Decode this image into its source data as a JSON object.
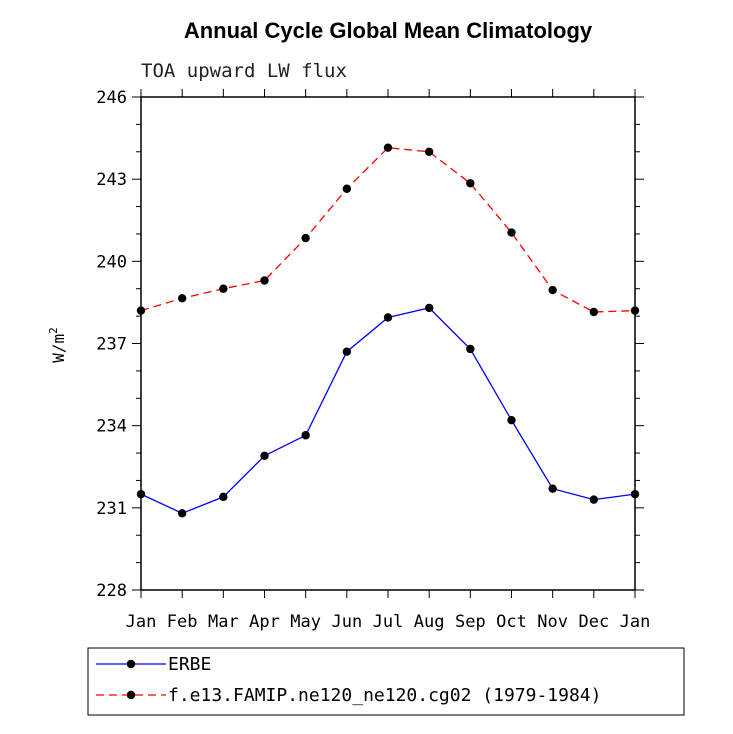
{
  "chart_data": {
    "type": "line",
    "title": "Annual Cycle Global Mean Climatology",
    "subtitle": "TOA upward LW flux",
    "xlabel": "",
    "ylabel_base": "W/m",
    "ylabel_sup": "2",
    "categories": [
      "Jan",
      "Feb",
      "Mar",
      "Apr",
      "May",
      "Jun",
      "Jul",
      "Aug",
      "Sep",
      "Oct",
      "Nov",
      "Dec",
      "Jan"
    ],
    "ylim": [
      228,
      246
    ],
    "yticks": [
      228,
      231,
      234,
      237,
      240,
      243,
      246
    ],
    "series": [
      {
        "name": "ERBE",
        "color": "#0000ff",
        "dash": "solid",
        "values": [
          231.5,
          230.8,
          231.4,
          232.9,
          233.65,
          236.7,
          237.95,
          238.3,
          236.8,
          234.2,
          231.7,
          231.3,
          231.5
        ]
      },
      {
        "name": "f.e13.FAMIP.ne120_ne120.cg02 (1979-1984)",
        "color": "#ff0000",
        "dash": "dashed",
        "values": [
          238.2,
          238.65,
          239.0,
          239.3,
          240.85,
          242.65,
          244.15,
          244.0,
          242.85,
          241.05,
          238.95,
          238.15,
          238.2
        ]
      }
    ]
  }
}
